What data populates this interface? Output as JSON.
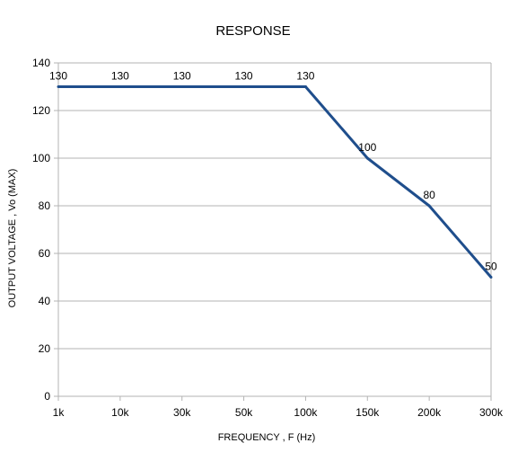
{
  "chart_data": {
    "type": "line",
    "title": "RESPONSE",
    "xlabel": "FREQUENCY , F (Hz)",
    "ylabel": "OUTPUT VOLTAGE , Vo (MAX)",
    "categories": [
      "1k",
      "10k",
      "30k",
      "50k",
      "100k",
      "150k",
      "200k",
      "300k"
    ],
    "y_ticks": [
      "0",
      "20",
      "40",
      "60",
      "80",
      "100",
      "120",
      "140"
    ],
    "ylim": [
      0,
      140
    ],
    "y_step": 20,
    "grid": "horizontal",
    "legend": "none",
    "series": [
      {
        "values": [
          130,
          130,
          130,
          130,
          130,
          100,
          80,
          50
        ],
        "data_labels": [
          "130",
          "130",
          "130",
          "130",
          "130",
          "100",
          "80",
          "50"
        ],
        "color": "#1f4e8c"
      }
    ]
  }
}
